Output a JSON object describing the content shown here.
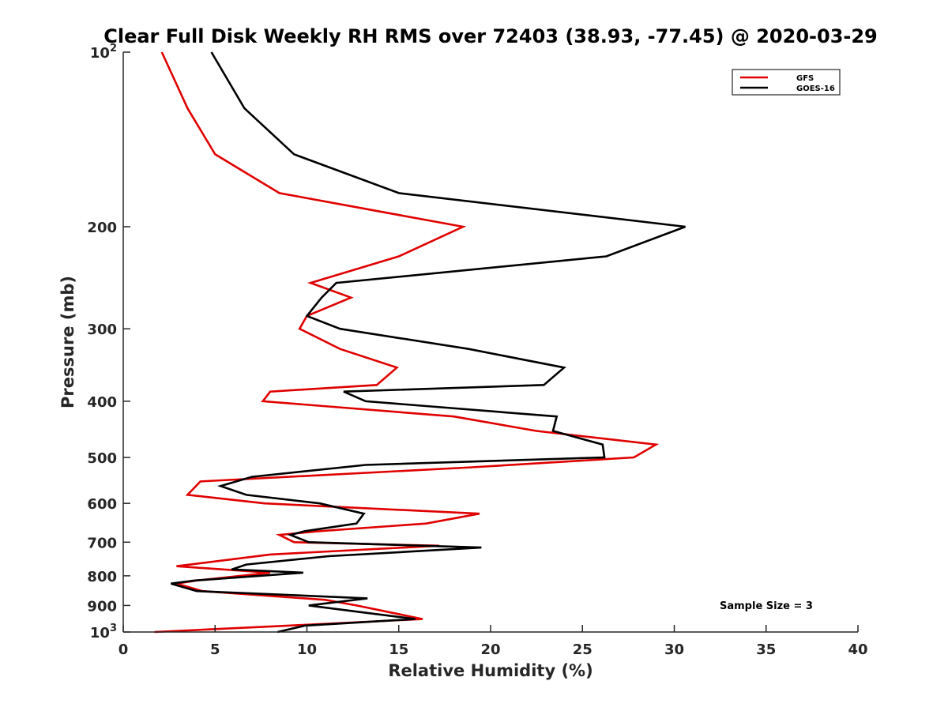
{
  "chart_data": {
    "type": "line",
    "title": "Clear Full Disk Weekly RH RMS over 72403 (38.93, -77.45) @ 2020-03-29",
    "xlabel": "Relative Humidity (%)",
    "ylabel": "Pressure (mb)",
    "xlim": [
      0,
      40
    ],
    "ylim": [
      1000,
      100
    ],
    "yscale": "log",
    "y_reversed": true,
    "x_ticks": [
      0,
      5,
      10,
      15,
      20,
      25,
      30,
      35,
      40
    ],
    "x_tick_labels": [
      "0",
      "5",
      "10",
      "15",
      "20",
      "25",
      "30",
      "35",
      "40"
    ],
    "y_ticks": [
      100,
      200,
      300,
      400,
      500,
      600,
      700,
      800,
      900,
      1000
    ],
    "y_tick_labels": [
      {
        "base": "10",
        "exp": "2"
      },
      {
        "base": "200",
        "exp": ""
      },
      {
        "base": "300",
        "exp": ""
      },
      {
        "base": "400",
        "exp": ""
      },
      {
        "base": "500",
        "exp": ""
      },
      {
        "base": "600",
        "exp": ""
      },
      {
        "base": "700",
        "exp": ""
      },
      {
        "base": "800",
        "exp": ""
      },
      {
        "base": "900",
        "exp": ""
      },
      {
        "base": "10",
        "exp": "3"
      }
    ],
    "grid": false,
    "legend_position": "top-right",
    "annotation": "Sample Size = 3",
    "series": [
      {
        "name": "GFS",
        "color": "#e00000",
        "points": [
          [
            2.1,
            100
          ],
          [
            3.5,
            125
          ],
          [
            5.0,
            150
          ],
          [
            8.5,
            175
          ],
          [
            18.5,
            200
          ],
          [
            15.0,
            225
          ],
          [
            10.2,
            250
          ],
          [
            12.4,
            265
          ],
          [
            10.0,
            285
          ],
          [
            9.6,
            300
          ],
          [
            11.8,
            325
          ],
          [
            14.9,
            350
          ],
          [
            13.8,
            375
          ],
          [
            8.0,
            385
          ],
          [
            7.6,
            400
          ],
          [
            18.0,
            425
          ],
          [
            22.5,
            450
          ],
          [
            29.0,
            475
          ],
          [
            27.8,
            500
          ],
          [
            19.0,
            520
          ],
          [
            4.2,
            550
          ],
          [
            3.5,
            580
          ],
          [
            7.7,
            600
          ],
          [
            19.4,
            625
          ],
          [
            16.5,
            650
          ],
          [
            10.7,
            670
          ],
          [
            8.5,
            680
          ],
          [
            9.3,
            700
          ],
          [
            17.2,
            710
          ],
          [
            8.0,
            735
          ],
          [
            2.9,
            770
          ],
          [
            8.0,
            790
          ],
          [
            4.0,
            815
          ],
          [
            2.9,
            825
          ],
          [
            4.3,
            850
          ],
          [
            11.0,
            880
          ],
          [
            12.7,
            900
          ],
          [
            16.3,
            950
          ],
          [
            9.0,
            975
          ],
          [
            1.7,
            1000
          ]
        ]
      },
      {
        "name": "GOES-16",
        "color": "#000000",
        "points": [
          [
            4.8,
            100
          ],
          [
            6.6,
            125
          ],
          [
            9.3,
            150
          ],
          [
            15.0,
            175
          ],
          [
            30.6,
            200
          ],
          [
            26.3,
            225
          ],
          [
            11.6,
            250
          ],
          [
            10.8,
            265
          ],
          [
            10.0,
            285
          ],
          [
            11.8,
            300
          ],
          [
            18.8,
            325
          ],
          [
            24.0,
            350
          ],
          [
            22.9,
            375
          ],
          [
            12.0,
            385
          ],
          [
            13.2,
            400
          ],
          [
            23.6,
            425
          ],
          [
            23.4,
            450
          ],
          [
            26.1,
            475
          ],
          [
            26.2,
            500
          ],
          [
            13.2,
            515
          ],
          [
            7.0,
            540
          ],
          [
            5.3,
            560
          ],
          [
            6.7,
            580
          ],
          [
            10.7,
            600
          ],
          [
            13.1,
            625
          ],
          [
            12.7,
            650
          ],
          [
            9.9,
            670
          ],
          [
            9.1,
            680
          ],
          [
            10.1,
            700
          ],
          [
            19.5,
            715
          ],
          [
            11.2,
            740
          ],
          [
            6.7,
            765
          ],
          [
            5.9,
            780
          ],
          [
            9.8,
            790
          ],
          [
            3.9,
            815
          ],
          [
            2.6,
            825
          ],
          [
            4.0,
            850
          ],
          [
            13.3,
            875
          ],
          [
            10.1,
            900
          ],
          [
            13.0,
            925
          ],
          [
            15.9,
            950
          ],
          [
            9.9,
            975
          ],
          [
            8.4,
            1000
          ]
        ]
      }
    ]
  }
}
